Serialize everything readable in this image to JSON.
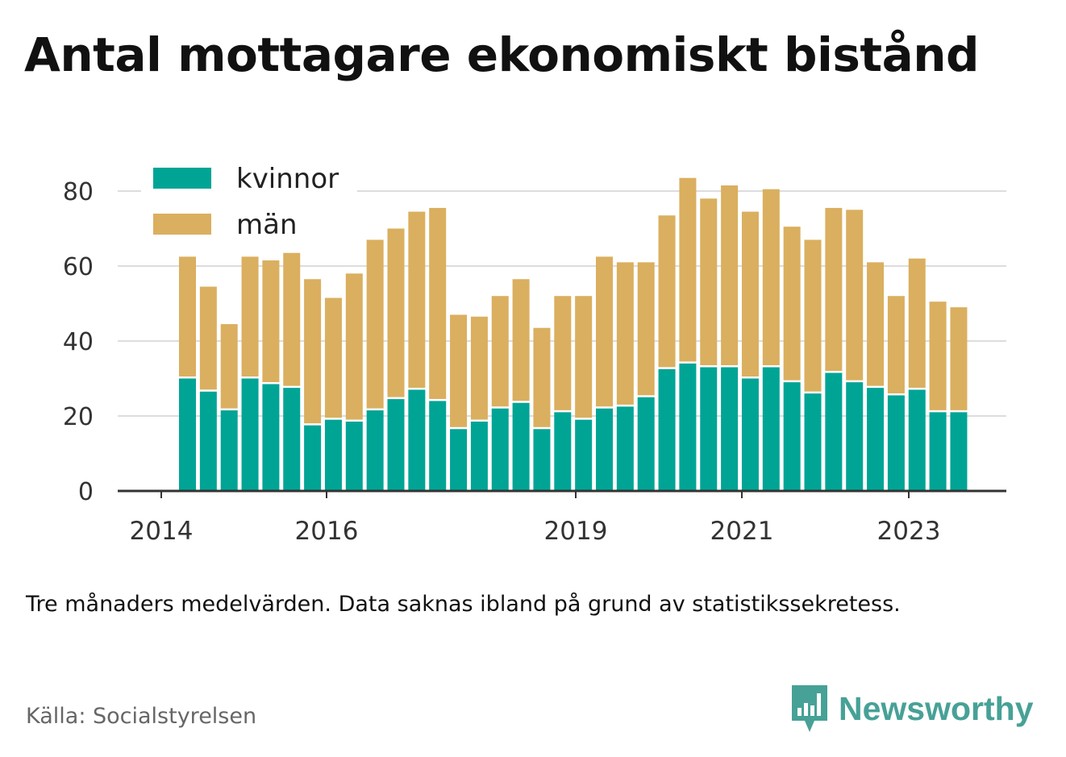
{
  "title": "Antal mottagare ekonomiskt bistånd",
  "note": "Tre månaders medelvärden. Data saknas ibland på grund av statistikssekretess.",
  "source": "Källa: Socialstyrelsen",
  "brand": {
    "name": "Newsworthy",
    "color": "#47a196",
    "icon": "newsworthy-logo-icon"
  },
  "chart_data": {
    "type": "bar",
    "stacked": true,
    "x_tick_labels": [
      "2014",
      "2016",
      "2019",
      "2021",
      "2023"
    ],
    "y_ticks": [
      0,
      20,
      40,
      60,
      80
    ],
    "ylim": [
      0,
      85
    ],
    "grid": true,
    "legend_position": "top-left",
    "series": [
      {
        "name": "kvinnor",
        "color": "#00a495",
        "values": [
          30,
          26.5,
          21.5,
          30,
          28.5,
          27.5,
          17.5,
          19,
          18.5,
          21.5,
          24.5,
          27,
          24,
          16.5,
          18.5,
          22,
          23.5,
          16.5,
          21,
          19,
          22,
          22.5,
          25,
          32.5,
          34,
          33,
          33,
          30,
          33,
          29,
          26,
          31.5,
          29,
          27.5,
          25.5,
          27,
          21,
          21
        ]
      },
      {
        "name": "män",
        "color": "#daaf5f",
        "values": [
          32.5,
          28,
          23,
          32.5,
          33,
          36,
          39,
          32.5,
          39.5,
          45.5,
          45.5,
          47.5,
          51.5,
          30.5,
          28,
          30,
          33,
          27,
          31,
          33,
          40.5,
          38.5,
          36,
          41,
          49.5,
          45,
          48.5,
          44.5,
          47.5,
          41.5,
          41,
          44,
          46,
          33.5,
          26.5,
          35,
          29.5,
          28
        ]
      }
    ]
  }
}
